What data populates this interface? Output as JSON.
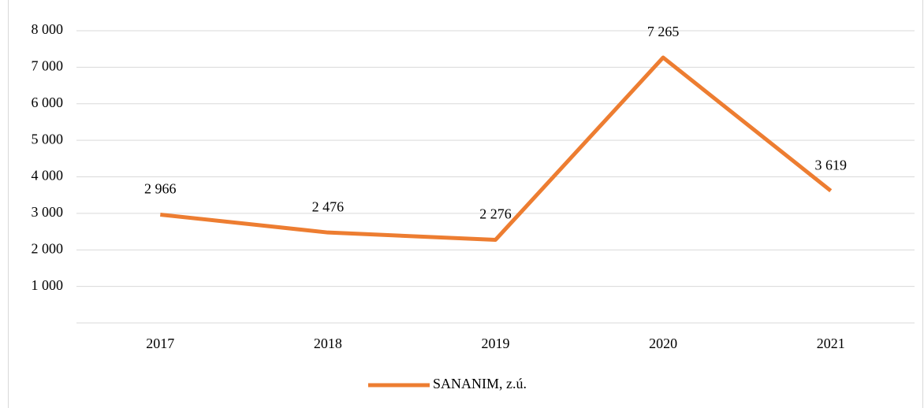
{
  "chart_data": {
    "type": "line",
    "categories": [
      "2017",
      "2018",
      "2019",
      "2020",
      "2021"
    ],
    "series": [
      {
        "name": "SANANIM, z.ú.",
        "color": "#ed7d31",
        "values": [
          2966,
          2476,
          2276,
          7265,
          3619
        ],
        "value_labels": [
          "2 966",
          "2 476",
          "2 276",
          "7 265",
          "3 619"
        ]
      }
    ],
    "ylim": [
      0,
      8000
    ],
    "yticks": [
      {
        "value": 1000,
        "label": "1 000"
      },
      {
        "value": 2000,
        "label": "2 000"
      },
      {
        "value": 3000,
        "label": "3 000"
      },
      {
        "value": 4000,
        "label": "4 000"
      },
      {
        "value": 5000,
        "label": "5 000"
      },
      {
        "value": 6000,
        "label": "6 000"
      },
      {
        "value": 7000,
        "label": "7 000"
      },
      {
        "value": 8000,
        "label": "8 000"
      }
    ],
    "grid": true,
    "legend": "bottom"
  }
}
